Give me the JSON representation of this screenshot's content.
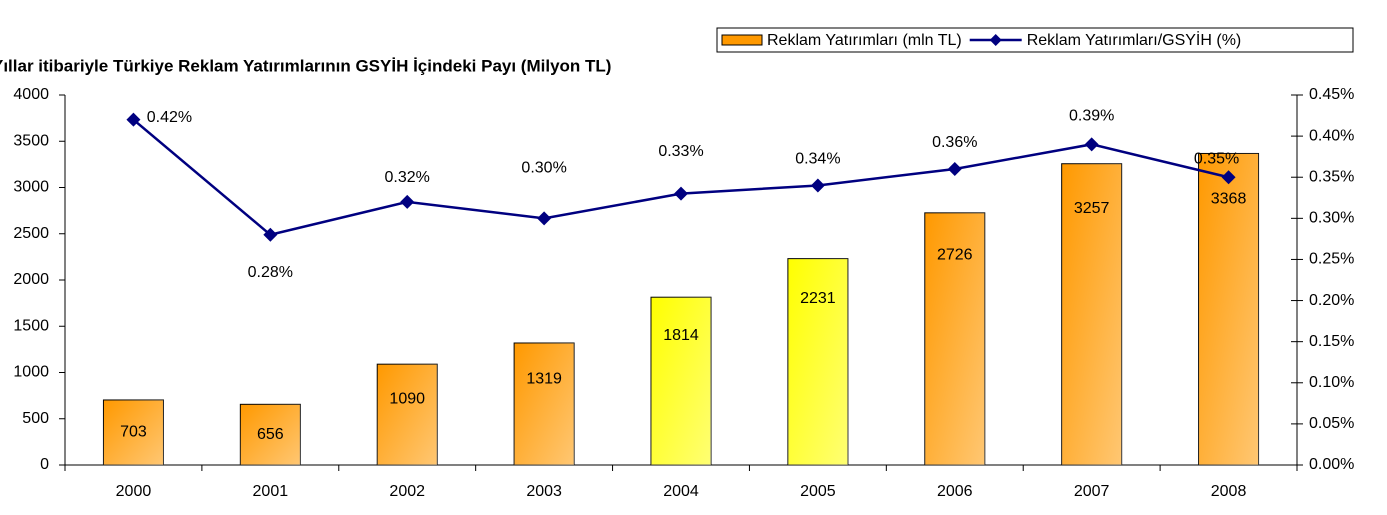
{
  "chart_data": {
    "type": "bar_line",
    "title": "Yıllar itibariyle Türkiye Reklam Yatırımlarının GSYİH İçindeki Payı (Milyon TL)",
    "categories": [
      "2000",
      "2001",
      "2002",
      "2003",
      "2004",
      "2005",
      "2006",
      "2007",
      "2008"
    ],
    "series": [
      {
        "name": "Reklam Yatırımları (mln TL)",
        "type": "bar",
        "color": "#ff9900",
        "colors": [
          "#ff9900",
          "#ff9900",
          "#ff9900",
          "#ff9900",
          "#ffff00",
          "#ffff00",
          "#ff9900",
          "#ff9900",
          "#ff9900"
        ],
        "values": [
          703,
          656,
          1090,
          1319,
          1814,
          2231,
          2726,
          3257,
          3368
        ]
      },
      {
        "name": "Reklam Yatırımları/GSYİH (%)",
        "type": "line",
        "axis": "y2",
        "color": "#000080",
        "values": [
          0.42,
          0.28,
          0.32,
          0.3,
          0.33,
          0.34,
          0.36,
          0.39,
          0.35
        ],
        "value_labels": [
          "0.42%",
          "0.28%",
          "0.32%",
          "0.30%",
          "0.33%",
          "0.34%",
          "0.36%",
          "0.39%",
          "0.35%"
        ]
      }
    ],
    "ylim": [
      0,
      4000
    ],
    "yticks": [
      0,
      500,
      1000,
      1500,
      2000,
      2500,
      3000,
      3500,
      4000
    ],
    "y2lim": [
      0,
      0.45
    ],
    "y2ticks": [
      {
        "value": 0,
        "label": "0.00%"
      },
      {
        "value": 0.05,
        "label": "0.05%"
      },
      {
        "value": 0.1,
        "label": "0.10%"
      },
      {
        "value": 0.15,
        "label": "0.15%"
      },
      {
        "value": 0.2,
        "label": "0.20%"
      },
      {
        "value": 0.25,
        "label": "0.25%"
      },
      {
        "value": 0.3,
        "label": "0.30%"
      },
      {
        "value": 0.35,
        "label": "0.35%"
      },
      {
        "value": 0.4,
        "label": "0.40%"
      },
      {
        "value": 0.45,
        "label": "0.45%"
      }
    ],
    "legend": "top-right"
  }
}
